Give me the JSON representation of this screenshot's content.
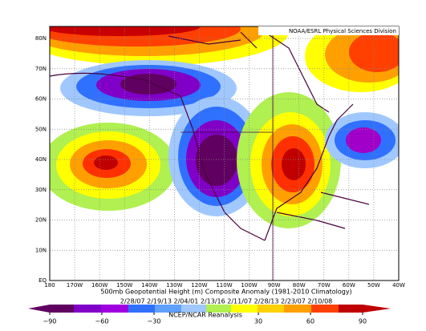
{
  "header": {
    "credit": "NOAA/ESRL Physical Sciences Division"
  },
  "map": {
    "lat_labels": [
      "EQ",
      "10N",
      "20N",
      "30N",
      "40N",
      "50N",
      "60N",
      "70N",
      "80N"
    ],
    "lon_labels": [
      "180",
      "170W",
      "160W",
      "150W",
      "140W",
      "130W",
      "120W",
      "110W",
      "100W",
      "90W",
      "80W",
      "70W",
      "60W",
      "50W",
      "40W"
    ]
  },
  "caption": {
    "title": "500mb Geopotential Height (m) Composite Anomaly (1981-2010 Climatology)",
    "dates": "2/28/07 2/19/13 2/04/01 2/13/16 2/11/07 2/28/13 2/23/07 2/10/08",
    "source": "NCEP/NCAR Reanalysis"
  },
  "colorbar": {
    "ticks": [
      {
        "value": -90,
        "label": "−90"
      },
      {
        "value": -60,
        "label": "−60"
      },
      {
        "value": -30,
        "label": "−30"
      },
      30,
      60,
      90
    ]
  }
}
